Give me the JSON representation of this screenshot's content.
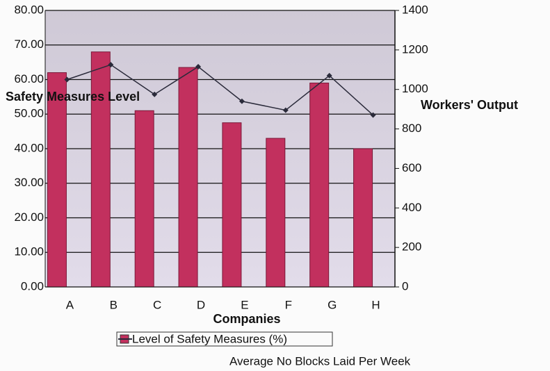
{
  "chart_data": {
    "type": "bar",
    "x_label": "Companies",
    "y_label": "Safety Measures Level",
    "y2_label": "Workers' Output",
    "categories": [
      "A",
      "B",
      "C",
      "D",
      "E",
      "F",
      "G",
      "H"
    ],
    "series": [
      {
        "name": "Level of Safety Measures (%)",
        "type": "bar",
        "color": "#c2305e",
        "values": [
          62,
          68,
          51,
          63.5,
          47.5,
          43,
          59,
          40
        ]
      },
      {
        "name": "Average No Blocks Laid Per Week",
        "type": "line",
        "axis": "y2",
        "color": "#2a2a3a",
        "values": [
          1050,
          1125,
          975,
          1115,
          940,
          895,
          1070,
          870
        ]
      }
    ],
    "ylim": [
      0,
      80
    ],
    "yticks": [
      {
        "value": 0,
        "label": "0.00"
      },
      {
        "value": 10,
        "label": "10.00"
      },
      {
        "value": 20,
        "label": "20.00"
      },
      {
        "value": 30,
        "label": "30.00"
      },
      {
        "value": 40,
        "label": "40.00"
      },
      {
        "value": 50,
        "label": "50.00"
      },
      {
        "value": 60,
        "label": "60.00"
      },
      {
        "value": 70,
        "label": "70.00"
      },
      {
        "value": 80,
        "label": "80.00"
      }
    ],
    "y2lim": [
      0,
      1400
    ],
    "y2ticks": [
      0,
      200,
      400,
      600,
      800,
      1000,
      1200,
      1400
    ],
    "grid": true
  }
}
